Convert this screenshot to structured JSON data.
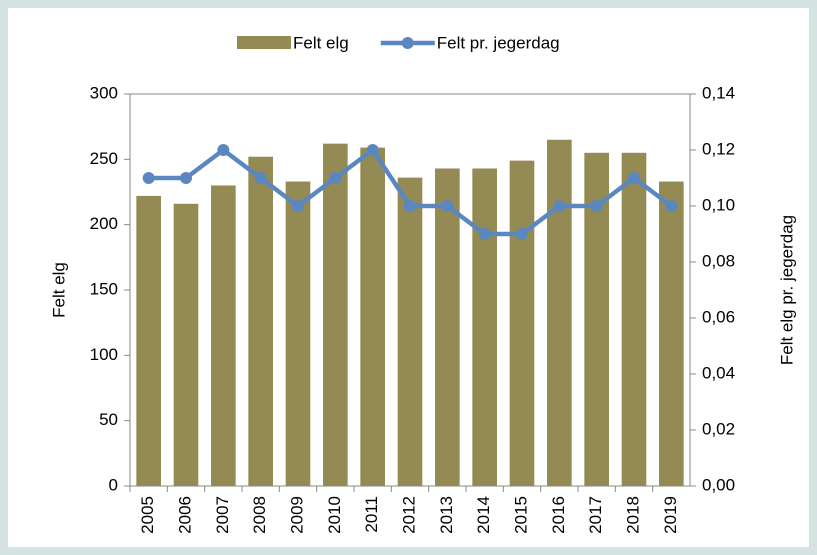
{
  "chart_data": {
    "type": "bar",
    "categories": [
      "2005",
      "2006",
      "2007",
      "2008",
      "2009",
      "2010",
      "2011",
      "2012",
      "2013",
      "2014",
      "2015",
      "2016",
      "2017",
      "2018",
      "2019"
    ],
    "series": [
      {
        "name": "Felt elg",
        "type": "bar",
        "color": "#948a54",
        "values": [
          222,
          216,
          230,
          252,
          233,
          262,
          259,
          236,
          243,
          243,
          249,
          265,
          255,
          255,
          233
        ]
      },
      {
        "name": "Felt pr. jegerdag",
        "type": "line",
        "axis": "y2",
        "color": "#5b87c0",
        "values": [
          0.11,
          0.11,
          0.12,
          0.11,
          0.1,
          0.11,
          0.12,
          0.1,
          0.1,
          0.09,
          0.09,
          0.1,
          0.1,
          0.11,
          0.1
        ]
      }
    ],
    "ylabel": "Felt elg",
    "y2label": "Felt elg pr. jegerdag",
    "ylim": [
      0,
      300
    ],
    "yticks": [
      0,
      50,
      100,
      150,
      200,
      250,
      300
    ],
    "y2lim": [
      0,
      0.14
    ],
    "y2ticks": [
      {
        "value": 0,
        "label": "0,00"
      },
      {
        "value": 0.02,
        "label": "0,02"
      },
      {
        "value": 0.04,
        "label": "0,04"
      },
      {
        "value": 0.06,
        "label": "0,06"
      },
      {
        "value": 0.08,
        "label": "0,08"
      },
      {
        "value": 0.1,
        "label": "0,10"
      },
      {
        "value": 0.12,
        "label": "0,12"
      },
      {
        "value": 0.14,
        "label": "0,14"
      }
    ],
    "legend": "top",
    "grid": false
  }
}
